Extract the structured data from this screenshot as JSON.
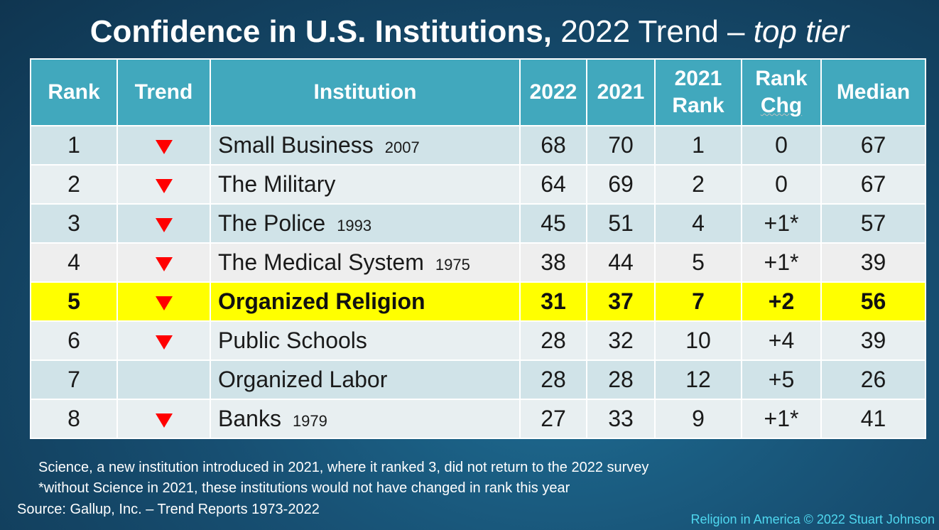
{
  "title": {
    "bold": "Confidence in U.S. Institutions,",
    "light": " 2022 Trend – ",
    "italic": "top tier"
  },
  "headers": {
    "rank": "Rank",
    "trend": "Trend",
    "institution": "Institution",
    "y2022": "2022",
    "y2021": "2021",
    "rank2021_line1": "2021",
    "rank2021_line2": "Rank",
    "rankchg_line1": "Rank",
    "rankchg_line2": "Chg",
    "median": "Median"
  },
  "rows": [
    {
      "rank": "1",
      "trend": "down",
      "institution": "Small Business",
      "year": "2007",
      "v2022": "68",
      "v2021": "70",
      "rank2021": "1",
      "chg": "0",
      "median": "67"
    },
    {
      "rank": "2",
      "trend": "down",
      "institution": "The Military",
      "year": "",
      "v2022": "64",
      "v2021": "69",
      "rank2021": "2",
      "chg": "0",
      "median": "67"
    },
    {
      "rank": "3",
      "trend": "down",
      "institution": "The Police",
      "year": "1993",
      "v2022": "45",
      "v2021": "51",
      "rank2021": "4",
      "chg": "+1*",
      "median": "57"
    },
    {
      "rank": "4",
      "trend": "down",
      "institution": "The Medical System",
      "year": "1975",
      "v2022": "38",
      "v2021": "44",
      "rank2021": "5",
      "chg": "+1*",
      "median": "39"
    },
    {
      "rank": "5",
      "trend": "down",
      "institution": "Organized Religion",
      "year": "",
      "v2022": "31",
      "v2021": "37",
      "rank2021": "7",
      "chg": "+2",
      "median": "56"
    },
    {
      "rank": "6",
      "trend": "down",
      "institution": "Public Schools",
      "year": "",
      "v2022": "28",
      "v2021": "32",
      "rank2021": "10",
      "chg": "+4",
      "median": "39"
    },
    {
      "rank": "7",
      "trend": "none",
      "institution": "Organized Labor",
      "year": "",
      "v2022": "28",
      "v2021": "28",
      "rank2021": "12",
      "chg": "+5",
      "median": "26"
    },
    {
      "rank": "8",
      "trend": "down",
      "institution": "Banks",
      "year": "1979",
      "v2022": "27",
      "v2021": "33",
      "rank2021": "9",
      "chg": "+1*",
      "median": "41"
    }
  ],
  "notes": {
    "line1": "Science, a new institution introduced in 2021, where it ranked 3, did not return to the 2022 survey",
    "line2": "*without Science in 2021, these institutions would not have changed in rank this year"
  },
  "source": "Source: Gallup, Inc. – Trend Reports 1973-2022",
  "credit": "Religion in America © 2022 Stuart Johnson",
  "colors": {
    "header_bg": "#41a8bd",
    "highlight": "#ffff00",
    "trend_down": "#ff0000",
    "credit": "#4fd8f0"
  }
}
